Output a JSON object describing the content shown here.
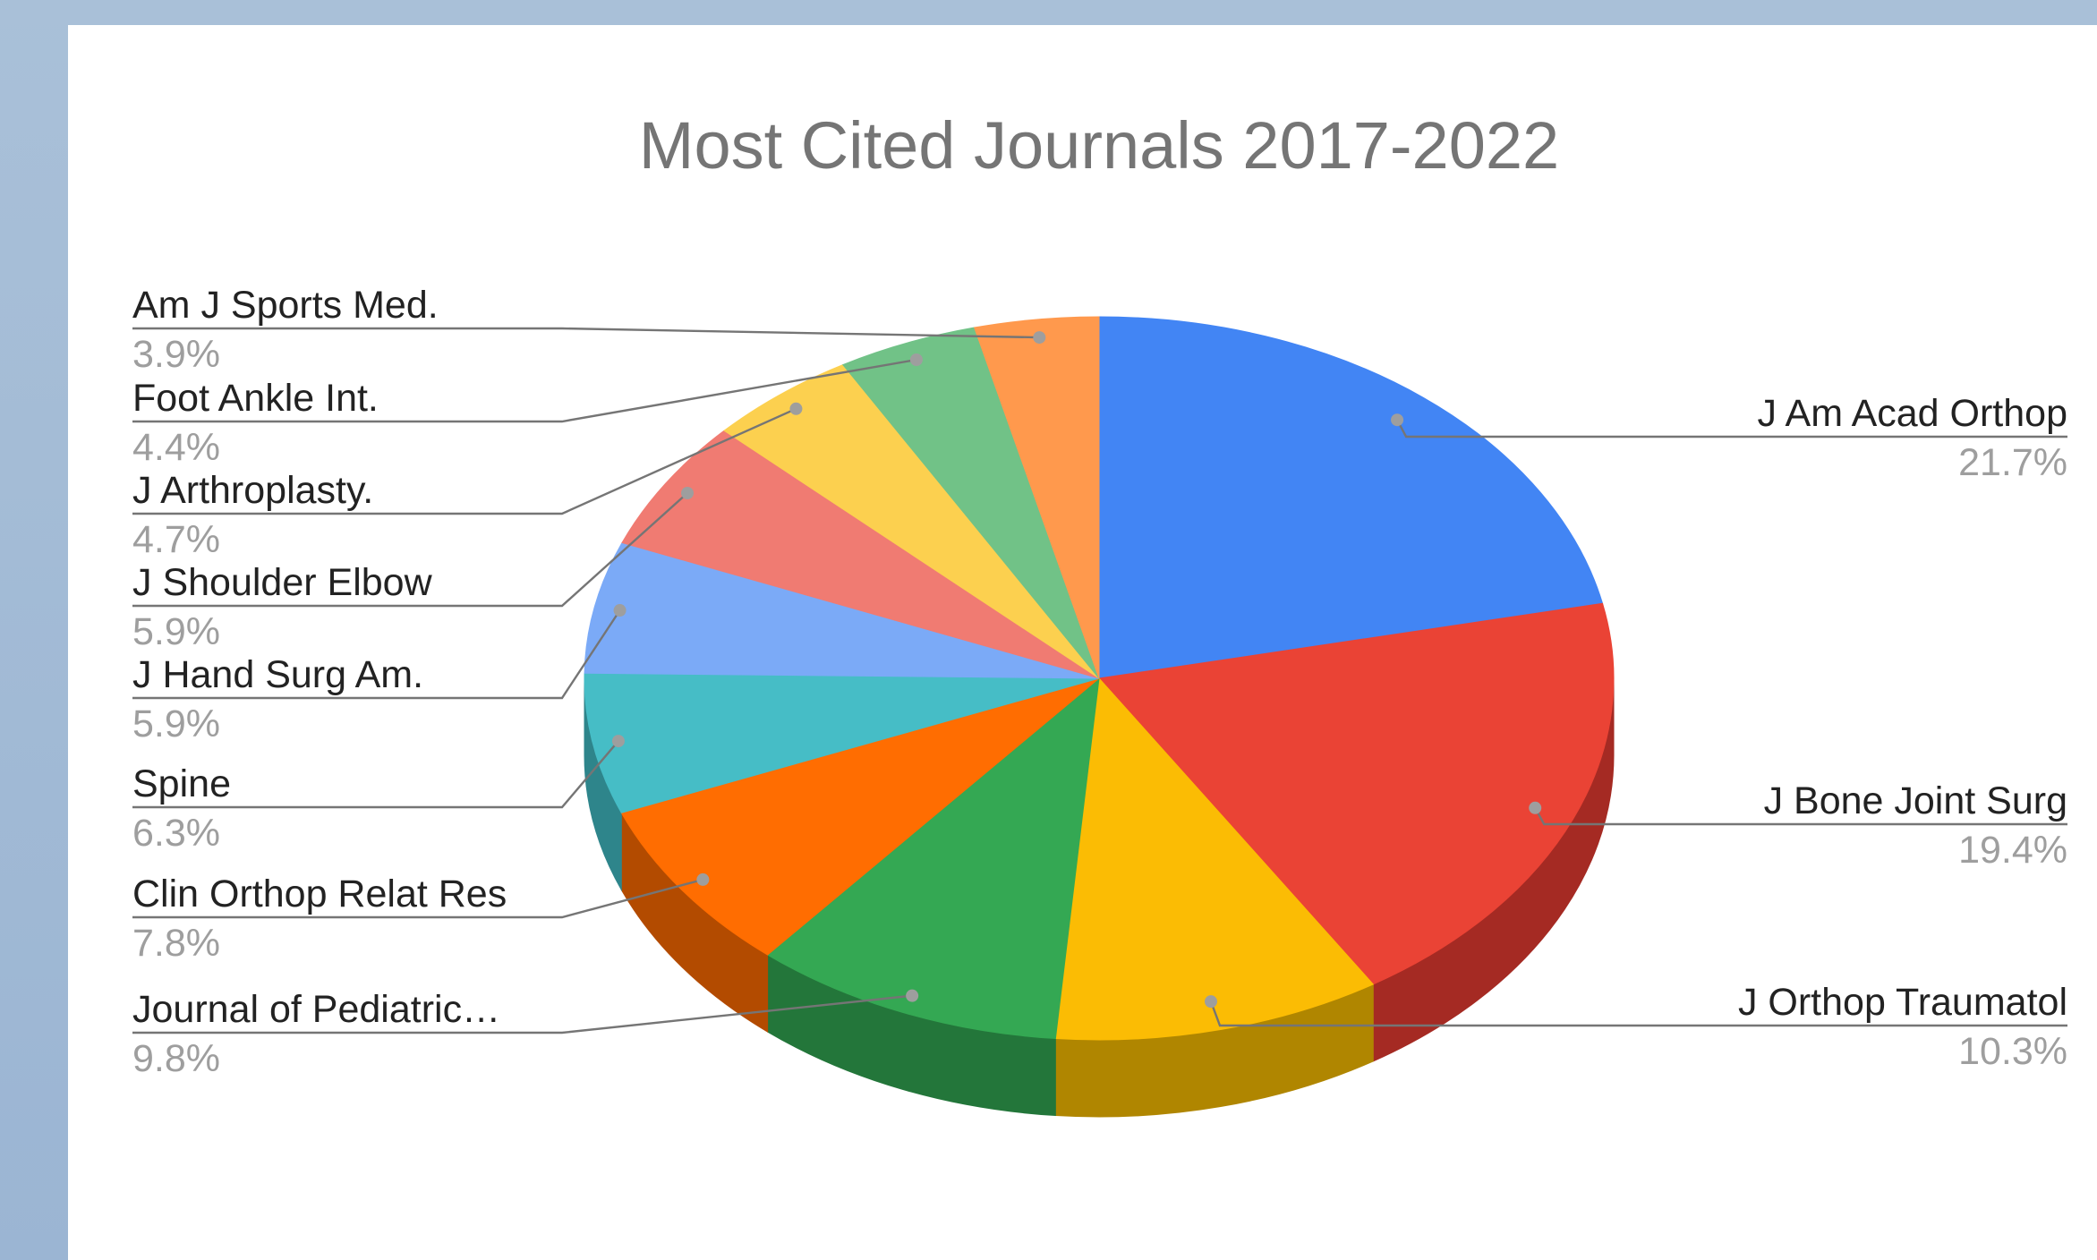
{
  "chart_data": {
    "type": "pie",
    "title": "Most Cited Journals 2017-2022",
    "slices": [
      {
        "label": "J Am Acad Orthop",
        "value": 21.7,
        "display": "21.7%",
        "color": "#4285f4",
        "side_color": "#2a5fb5"
      },
      {
        "label": "J Bone Joint Surg",
        "value": 19.4,
        "display": "19.4%",
        "color": "#ea4335",
        "side_color": "#a52a23"
      },
      {
        "label": "J Orthop Traumatol",
        "value": 10.3,
        "display": "10.3%",
        "color": "#fbbc04",
        "side_color": "#b08600"
      },
      {
        "label": "Journal of Pediatric…",
        "value": 9.8,
        "display": "9.8%",
        "color": "#34a853",
        "side_color": "#23763a"
      },
      {
        "label": "Clin Orthop Relat Res",
        "value": 7.8,
        "display": "7.8%",
        "color": "#ff6d01",
        "side_color": "#b34b00"
      },
      {
        "label": "Spine",
        "value": 6.3,
        "display": "6.3%",
        "color": "#46bdc6",
        "side_color": "#2e858b"
      },
      {
        "label": "J Hand Surg Am.",
        "value": 5.9,
        "display": "5.9%",
        "color": "#7baaf7",
        "side_color": "#5478b0"
      },
      {
        "label": "J Shoulder Elbow",
        "value": 5.9,
        "display": "5.9%",
        "color": "#f07b72",
        "side_color": "#a9554f"
      },
      {
        "label": "J Arthroplasty.",
        "value": 4.7,
        "display": "4.7%",
        "color": "#fcd04f",
        "side_color": "#b39232"
      },
      {
        "label": "Foot Ankle Int.",
        "value": 4.4,
        "display": "4.4%",
        "color": "#71c287",
        "side_color": "#4e8960"
      },
      {
        "label": "Am J Sports Med.",
        "value": 3.9,
        "display": "3.9%",
        "color": "#ff994d",
        "side_color": "#b36a34"
      }
    ],
    "legend": "none",
    "labels": "outside with leader lines",
    "style": "3d"
  }
}
